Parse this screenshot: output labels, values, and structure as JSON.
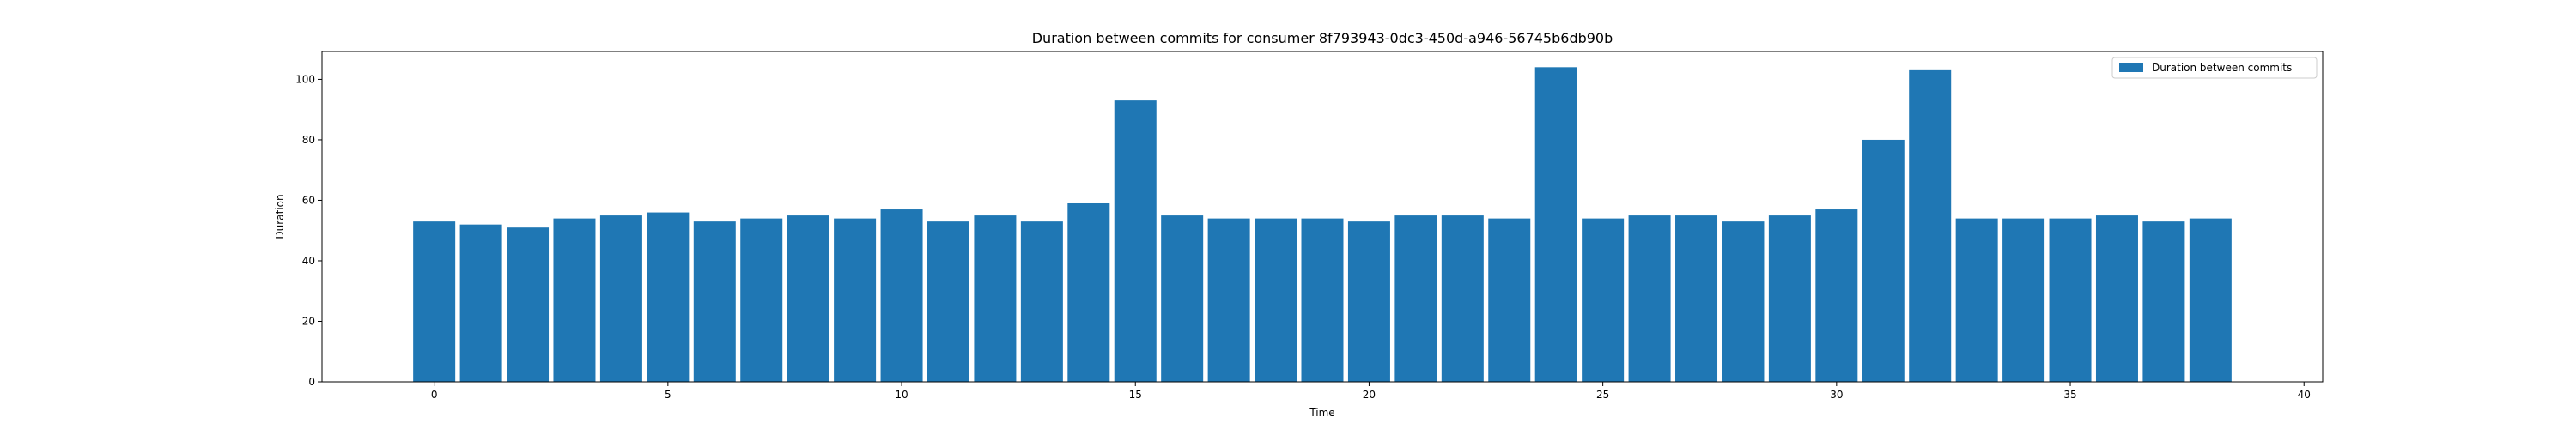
{
  "chart_data": {
    "type": "bar",
    "title": "Duration between commits for consumer 8f793943-0dc3-450d-a946-56745b6db90b",
    "xlabel": "Time",
    "ylabel": "Duration",
    "x": [
      0,
      1,
      2,
      3,
      4,
      5,
      6,
      7,
      8,
      9,
      10,
      11,
      12,
      13,
      14,
      15,
      16,
      17,
      18,
      19,
      20,
      21,
      22,
      23,
      24,
      25,
      26,
      27,
      28,
      29,
      30,
      31,
      32,
      33,
      34,
      35,
      36,
      37,
      38
    ],
    "series": [
      {
        "name": "Duration between commits",
        "values": [
          53,
          52,
          51,
          54,
          55,
          56,
          53,
          54,
          55,
          54,
          57,
          53,
          55,
          53,
          59,
          93,
          55,
          54,
          54,
          54,
          53,
          55,
          55,
          54,
          104,
          54,
          55,
          55,
          53,
          55,
          57,
          80,
          103,
          54,
          54,
          54,
          55,
          53,
          54
        ]
      }
    ],
    "xlim": [
      -2.4,
      40.4
    ],
    "ylim": [
      0,
      109.2
    ],
    "xticks": [
      0,
      5,
      10,
      15,
      20,
      25,
      30,
      35,
      40
    ],
    "yticks": [
      0,
      20,
      40,
      60,
      80,
      100
    ],
    "bar_width": 0.9,
    "grid": false,
    "legend_position": "upper right",
    "colors": {
      "bar": "#1f77b4",
      "axes": "#000000"
    }
  }
}
